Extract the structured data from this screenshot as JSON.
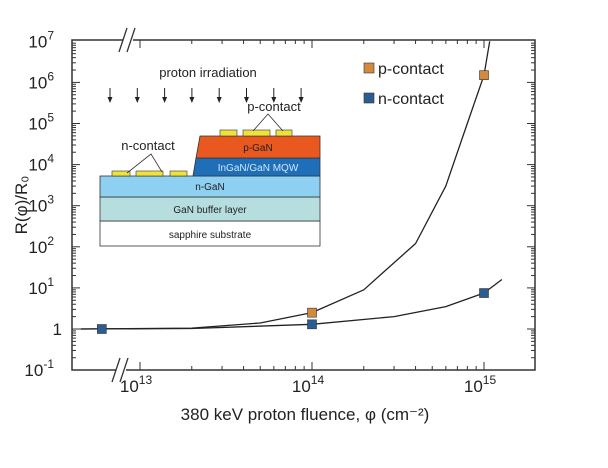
{
  "chart_data": {
    "type": "scatter",
    "title": "",
    "xlabel": "380 keV proton fluence, φ (cm⁻²)",
    "ylabel": "R(φ)/R₀",
    "xscale": "log",
    "yscale": "log",
    "xlim": [
      4000000000000.0,
      2000000000000000.0
    ],
    "ylim": [
      0.1,
      10000000.0
    ],
    "x_ticks": [
      {
        "value": 10000000000000.0,
        "label": "10",
        "exp": "13"
      },
      {
        "value": 100000000000000.0,
        "label": "10",
        "exp": "14"
      },
      {
        "value": 1000000000000000.0,
        "label": "10",
        "exp": "15"
      }
    ],
    "y_ticks": [
      {
        "value": 10000000.0,
        "label": "10",
        "exp": "7"
      },
      {
        "value": 1000000.0,
        "label": "10",
        "exp": "6"
      },
      {
        "value": 100000.0,
        "label": "10",
        "exp": "5"
      },
      {
        "value": 10000.0,
        "label": "10",
        "exp": "4"
      },
      {
        "value": 1000.0,
        "label": "10",
        "exp": "3"
      },
      {
        "value": 100.0,
        "label": "10",
        "exp": "2"
      },
      {
        "value": 10,
        "label": "10",
        "exp": "1"
      },
      {
        "value": 1,
        "label": "1",
        "exp": ""
      },
      {
        "value": 0.1,
        "label": "10",
        "exp": "-1"
      }
    ],
    "axis_breaks": [
      "x"
    ],
    "grid": false,
    "legend_position": "top-right",
    "series": [
      {
        "name": "p-contact",
        "color": "#d48a3c",
        "marker": "square",
        "x": [
          100000000000000.0,
          1000000000000000.0
        ],
        "y": [
          2.5,
          1500000.0
        ],
        "fit_curve": {
          "x": [
            4500000000000.0,
            20000000000000.0,
            50000000000000.0,
            100000000000000.0,
            200000000000000.0,
            400000000000000.0,
            600000000000000.0,
            800000000000000.0,
            1000000000000000.0,
            1080000000000000.0
          ],
          "y": [
            1,
            1.05,
            1.4,
            2.5,
            9,
            120,
            3000,
            100000.0,
            1500000.0,
            10000000.0
          ]
        }
      },
      {
        "name": "n-contact",
        "color": "#2b5d92",
        "marker": "square",
        "x": [
          6000000000000.0,
          100000000000000.0,
          1000000000000000.0
        ],
        "y": [
          1,
          1.3,
          7.5
        ],
        "fit_curve": {
          "x": [
            4500000000000.0,
            20000000000000.0,
            100000000000000.0,
            300000000000000.0,
            600000000000000.0,
            1000000000000000.0,
            1270000000000000.0
          ],
          "y": [
            1,
            1.03,
            1.3,
            2,
            3.5,
            7.5,
            16
          ]
        }
      }
    ]
  },
  "inset": {
    "title": "proton irradiation",
    "p_contact_label": "p-contact",
    "n_contact_label": "n-contact",
    "layers": [
      {
        "name": "p-GaN",
        "color": "#e8581f",
        "text_color": "#333"
      },
      {
        "name": "InGaN/GaN MQW",
        "color": "#1f6fb8",
        "text_color": "#cfe6ff"
      },
      {
        "name": "n-GaN",
        "color": "#8dd0f2",
        "text_color": "#333"
      },
      {
        "name": "GaN buffer layer",
        "color": "#b7dedf",
        "text_color": "#333"
      },
      {
        "name": "sapphire substrate",
        "color": "#ffffff",
        "text_color": "#333"
      }
    ],
    "contact_color": "#f0e23c"
  }
}
